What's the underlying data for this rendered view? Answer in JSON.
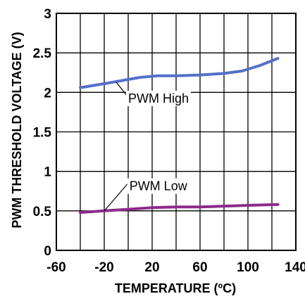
{
  "chart_data": {
    "type": "line",
    "xlabel": "TEMPERATURE (ºC)",
    "ylabel": "PWM THRESHOLD VOLTAGE (V)",
    "xlim": [
      -60,
      140
    ],
    "ylim": [
      0,
      3
    ],
    "x_ticks": [
      -60,
      -20,
      20,
      60,
      100,
      140
    ],
    "x_tick_labels": [
      "-60",
      "-20",
      "20",
      "60",
      "100",
      "140"
    ],
    "x_gridlines": [
      -60,
      -40,
      -20,
      0,
      20,
      40,
      60,
      80,
      100,
      120,
      140
    ],
    "y_ticks": [
      0,
      0.5,
      1,
      1.5,
      2,
      2.5,
      3
    ],
    "y_tick_labels": [
      "0",
      "0.5",
      "1",
      "1.5",
      "2",
      "2.5",
      "3"
    ],
    "grid": true,
    "legend": "none",
    "series": [
      {
        "name": "PWM High",
        "color": "#5470c8",
        "x": [
          -40,
          -20,
          -5,
          10,
          25,
          40,
          60,
          80,
          95,
          110,
          125
        ],
        "y": [
          2.06,
          2.11,
          2.15,
          2.19,
          2.21,
          2.21,
          2.22,
          2.24,
          2.27,
          2.34,
          2.43
        ]
      },
      {
        "name": "PWM Low",
        "color": "#8e2a8c",
        "x": [
          -40,
          -20,
          0,
          20,
          40,
          60,
          80,
          100,
          125
        ],
        "y": [
          0.48,
          0.5,
          0.52,
          0.54,
          0.55,
          0.55,
          0.56,
          0.57,
          0.58
        ]
      }
    ],
    "annotations": [
      {
        "text": "PWM High",
        "series": 0,
        "x": -10,
        "y": 2.13,
        "label_x": 0,
        "label_y": 1.87
      },
      {
        "text": "PWM Low",
        "series": 1,
        "x": -20,
        "y": 0.5,
        "label_x": 1,
        "label_y": 0.76
      }
    ]
  }
}
